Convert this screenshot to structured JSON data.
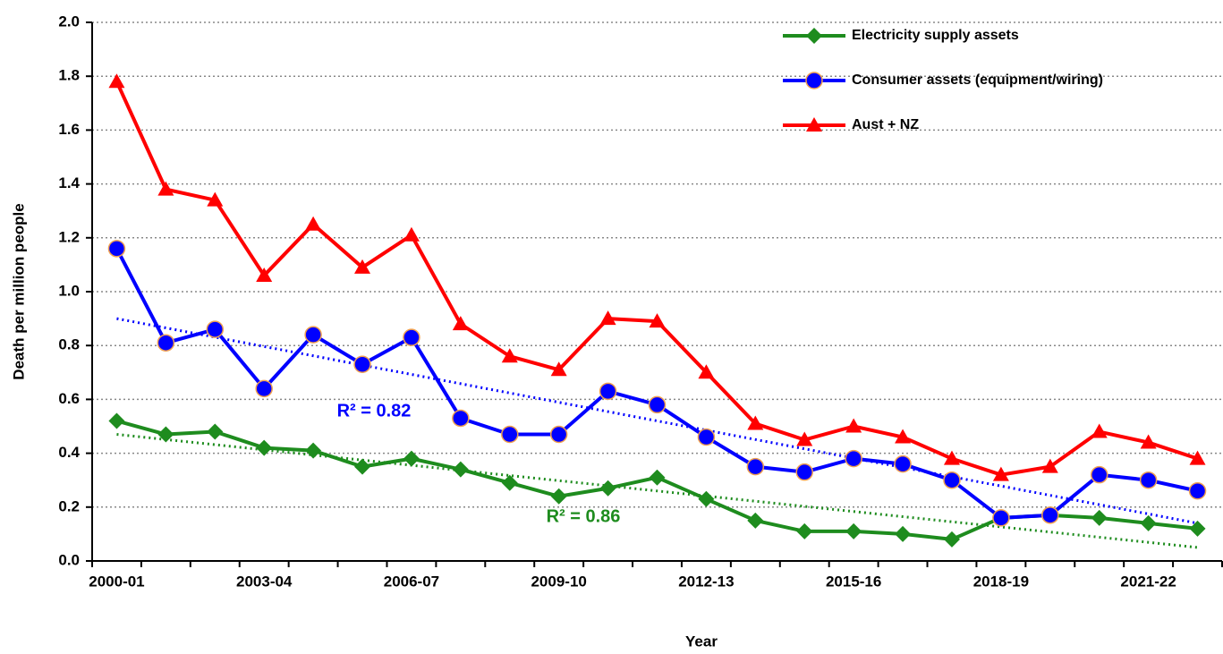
{
  "chart_data": {
    "type": "line",
    "x_label": "Year",
    "y_label": "Death per million people",
    "categories": [
      "2000-01",
      null,
      null,
      "2003-04",
      null,
      null,
      "2006-07",
      null,
      null,
      "2009-10",
      null,
      null,
      "2012-13",
      null,
      null,
      "2015-16",
      null,
      null,
      "2018-19",
      null,
      null,
      "2021-22",
      null
    ],
    "ylim": [
      0,
      2
    ],
    "yticks": [
      {
        "value": 0,
        "label": "0.0"
      },
      0.2,
      0.4,
      0.6,
      0.8,
      {
        "value": 1,
        "label": "1.0"
      },
      1.2,
      1.4,
      1.6,
      1.8,
      {
        "value": 2,
        "label": "2.0"
      }
    ],
    "grid": true,
    "legend": "upper right",
    "series": [
      {
        "name": "Electricity supply assets",
        "color": "#1e8c1e",
        "marker": "diamond",
        "values": [
          0.52,
          0.47,
          0.48,
          0.42,
          0.41,
          0.35,
          0.38,
          0.34,
          0.29,
          0.24,
          0.27,
          0.31,
          0.23,
          0.15,
          0.11,
          0.11,
          0.1,
          0.08,
          0.16,
          0.17,
          0.16,
          0.14,
          0.12
        ]
      },
      {
        "name": "Consumer assets (equipment/wiring)",
        "color": "#0000ff",
        "marker": "circle",
        "values": [
          1.16,
          0.81,
          0.86,
          0.64,
          0.84,
          0.73,
          0.83,
          0.53,
          0.47,
          0.47,
          0.63,
          0.58,
          0.46,
          0.35,
          0.33,
          0.38,
          0.36,
          0.3,
          0.16,
          0.17,
          0.32,
          0.3,
          0.26
        ]
      },
      {
        "name": "Aust + NZ",
        "color": "#ff0000",
        "marker": "triangle",
        "values": [
          1.78,
          1.38,
          1.34,
          1.06,
          1.25,
          1.09,
          1.21,
          0.88,
          0.76,
          0.71,
          0.9,
          0.89,
          0.7,
          0.51,
          0.45,
          0.5,
          0.46,
          0.38,
          0.32,
          0.35,
          0.48,
          0.44,
          0.38
        ]
      }
    ],
    "trendlines": [
      {
        "color": "#0000ff",
        "start": 0.9,
        "end": 0.14,
        "label": "R² = 0.82"
      },
      {
        "color": "#1e8c1e",
        "start": 0.47,
        "end": 0.05,
        "label": "R² = 0.86"
      }
    ]
  }
}
